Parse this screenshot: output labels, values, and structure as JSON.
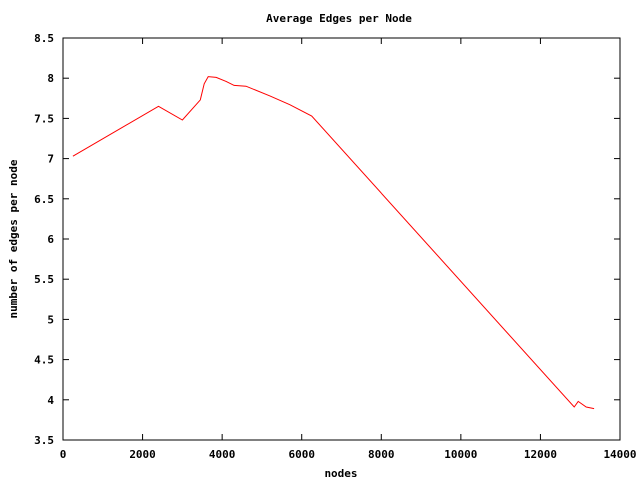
{
  "chart_data": {
    "type": "line",
    "title": "Average Edges per Node",
    "xlabel": "nodes",
    "ylabel": "number of edges per node",
    "xlim": [
      0,
      14000
    ],
    "ylim": [
      3.5,
      8.5
    ],
    "x_ticks": [
      0,
      2000,
      4000,
      6000,
      8000,
      10000,
      12000,
      14000
    ],
    "y_ticks": [
      3.5,
      4,
      4.5,
      5,
      5.5,
      6,
      6.5,
      7,
      7.5,
      8,
      8.5
    ],
    "x_tick_labels": [
      "0",
      "2000",
      "4000",
      "6000",
      "8000",
      "10000",
      "12000",
      "14000"
    ],
    "y_tick_labels": [
      "3.5",
      "4",
      "4.5",
      "5",
      "5.5",
      "6",
      "6.5",
      "7",
      "7.5",
      "8",
      "8.5"
    ],
    "grid": false,
    "legend": "none",
    "series": [
      {
        "color": "#ff0000",
        "x": [
          250,
          2400,
          3000,
          3450,
          3550,
          3650,
          3850,
          4100,
          4300,
          4600,
          5200,
          5700,
          6250,
          12850,
          12950,
          13150,
          13350
        ],
        "y": [
          7.03,
          7.65,
          7.48,
          7.73,
          7.93,
          8.02,
          8.01,
          7.96,
          7.91,
          7.9,
          7.78,
          7.67,
          7.53,
          3.91,
          3.98,
          3.91,
          3.89
        ]
      }
    ]
  }
}
